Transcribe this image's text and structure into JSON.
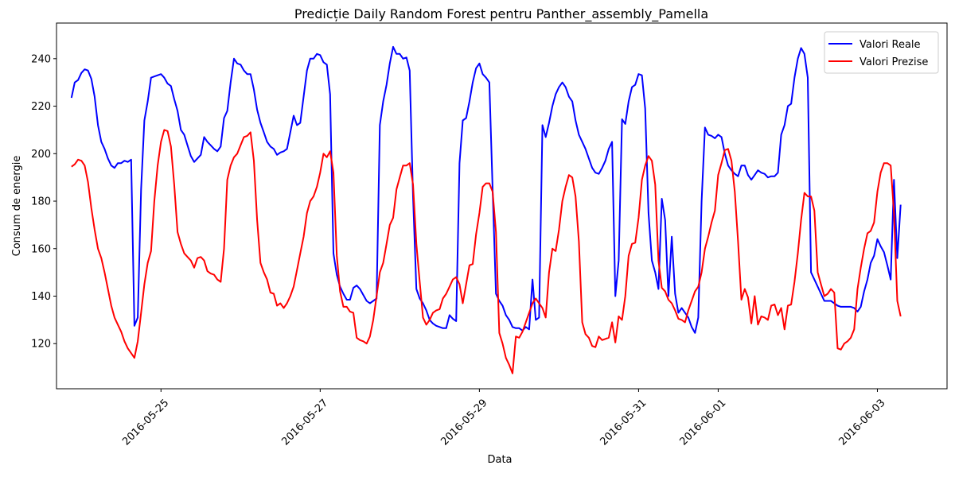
{
  "chart_data": {
    "type": "line",
    "title": "Predicție Daily Random Forest pentru Panther_assembly_Pamella",
    "xlabel": "Data",
    "ylabel": "Consum de energie",
    "xlim": [
      "2016-05-23T16:30",
      "2016-06-03T21:00"
    ],
    "ylim": [
      101,
      255
    ],
    "x_ticks": [
      "2016-05-25",
      "2016-05-27",
      "2016-05-29",
      "2016-05-31",
      "2016-06-01",
      "2016-06-03"
    ],
    "y_ticks": [
      120,
      140,
      160,
      180,
      200,
      220,
      240
    ],
    "grid": false,
    "legend_position": "top-right",
    "x_start": "2016-05-23T21:00",
    "x_step_hours": 1,
    "series": [
      {
        "name": "Valori Reale",
        "color": "#0000ff",
        "values": [
          223.5,
          230,
          231,
          234,
          235.5,
          235,
          231.5,
          224,
          212,
          205,
          202,
          198,
          195,
          194,
          196,
          196,
          197,
          196.5,
          197.5,
          127.5,
          131,
          185,
          214,
          222,
          232,
          232.5,
          233,
          233.5,
          232,
          229.5,
          228.5,
          223,
          218,
          210,
          208,
          203.5,
          199,
          196.5,
          198,
          199.5,
          207,
          205,
          203.5,
          202,
          201,
          203,
          215,
          218,
          230,
          240,
          238,
          237.5,
          235,
          233.5,
          233.5,
          227,
          218.5,
          213,
          209,
          205,
          203,
          202,
          199.5,
          200.5,
          201,
          202,
          209,
          216,
          212,
          213,
          224,
          235,
          240,
          240,
          242,
          241.5,
          238.5,
          237.5,
          225,
          158,
          149,
          144,
          141,
          138.5,
          138.5,
          143.5,
          144.5,
          143,
          140.5,
          138,
          137,
          138,
          139,
          212,
          222,
          229,
          238,
          245,
          242,
          242,
          240,
          240.5,
          235,
          182,
          143,
          139,
          137,
          134,
          130,
          128.5,
          127.5,
          127,
          126.5,
          126.5,
          132,
          130.5,
          129.5,
          196,
          214,
          215,
          222,
          230,
          236,
          238,
          233.5,
          232,
          230,
          185,
          141,
          138,
          136,
          132,
          130,
          127,
          126.5,
          126.5,
          125.5,
          127,
          126,
          147,
          130,
          131,
          212,
          207,
          213,
          220,
          225,
          228,
          230,
          228,
          224,
          222,
          214,
          208,
          205,
          202,
          198,
          194,
          192,
          191.5,
          194,
          197,
          202,
          205,
          140,
          155,
          214.5,
          212.5,
          222,
          228,
          229,
          233.5,
          233,
          219,
          175,
          155,
          150,
          143,
          181,
          172,
          140,
          165,
          141,
          133,
          135,
          133,
          131,
          127,
          124.5,
          131,
          180,
          211,
          208,
          207.5,
          206.5,
          208,
          207,
          200,
          195,
          193,
          191.5,
          190.5,
          195,
          195,
          191,
          189,
          191,
          193,
          192,
          191.5,
          190,
          190.5,
          190.5,
          192,
          208,
          212,
          220,
          221,
          232,
          240,
          244.5,
          242,
          232,
          150,
          147,
          144,
          141,
          138,
          138,
          138,
          137,
          136,
          135.5,
          135.5,
          135.5,
          135.5,
          135,
          133.5,
          135.5,
          142,
          147,
          154,
          157,
          164,
          161,
          158.5,
          153,
          147,
          189,
          156,
          178.5
        ]
      },
      {
        "name": "Valori Prezise",
        "color": "#ff0000",
        "values": [
          194.5,
          195.5,
          197.5,
          197,
          195,
          188,
          177,
          168,
          160,
          156,
          150,
          143,
          136,
          131,
          128,
          125,
          121,
          118,
          116,
          114,
          121,
          133,
          145,
          154,
          159,
          180,
          195,
          205,
          210,
          209.5,
          203,
          187,
          167,
          162,
          158,
          156.5,
          155,
          152,
          156,
          156.5,
          155,
          150.5,
          149.5,
          149,
          147,
          146,
          160,
          189,
          195,
          198.5,
          200,
          203.5,
          207,
          207.5,
          209,
          197,
          172,
          154,
          150,
          147,
          141.5,
          141,
          136,
          137,
          135,
          137,
          140,
          144,
          151,
          158,
          165,
          175,
          180,
          182,
          186,
          192,
          200,
          198.5,
          201,
          192,
          157,
          142,
          135.5,
          135.5,
          133.5,
          133,
          122.5,
          121.5,
          121,
          120,
          123,
          130,
          140,
          150,
          154,
          162,
          170,
          173,
          185,
          190,
          195,
          195,
          196,
          187,
          162,
          146,
          131,
          128,
          130,
          133,
          134,
          134.5,
          139,
          141,
          144,
          147,
          148,
          145,
          137,
          145,
          153,
          153.5,
          166,
          175,
          186,
          187.5,
          187.5,
          184,
          167,
          124.5,
          120,
          114,
          111,
          107.5,
          123,
          122.5,
          125,
          129,
          133,
          137,
          139,
          137,
          135,
          131,
          150,
          160,
          159,
          168,
          180,
          186,
          191,
          190,
          182,
          163,
          129,
          124,
          122.5,
          119,
          118.5,
          123,
          121.5,
          122,
          122.5,
          129,
          120.5,
          131.5,
          130,
          140,
          157,
          162,
          162.5,
          173,
          189,
          195,
          199,
          197,
          187,
          155,
          143.5,
          142,
          138.5,
          137,
          134,
          130.5,
          130,
          129,
          134,
          138,
          142,
          144,
          150,
          160,
          165,
          171,
          176,
          191,
          196,
          201.5,
          202,
          197,
          184,
          163,
          138.5,
          143,
          139.5,
          128.5,
          140,
          128,
          131.5,
          131,
          130,
          136,
          136.5,
          132,
          135,
          126,
          136,
          136.5,
          146,
          158,
          172,
          183.5,
          182,
          182,
          176,
          150,
          145,
          140,
          141,
          143,
          141.5,
          118,
          117.5,
          120,
          121,
          122.5,
          126,
          143,
          152,
          160,
          166.5,
          167.5,
          171,
          184,
          192,
          196,
          196,
          195,
          175,
          138,
          131.5
        ]
      }
    ]
  }
}
